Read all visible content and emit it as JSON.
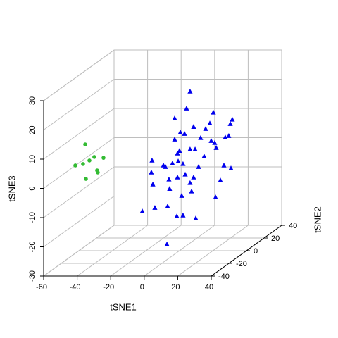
{
  "chart_data": {
    "type": "scatter3d",
    "xlabel": "tSNE1",
    "ylabel": "tSNE2",
    "zlabel": "tSNE3",
    "xlim": [
      -60,
      40
    ],
    "ylim": [
      -40,
      40
    ],
    "zlim": [
      -30,
      30
    ],
    "xticks": [
      -60,
      -40,
      -20,
      0,
      20,
      40
    ],
    "yticks": [
      -40,
      -20,
      0,
      20,
      40
    ],
    "zticks": [
      -30,
      -20,
      -10,
      0,
      10,
      20,
      30
    ],
    "grid": true,
    "series": [
      {
        "color": "#33bb33",
        "marker": "circle",
        "x": [
          -45.7,
          -40.3,
          -34.8,
          -43.2,
          -47.0,
          -51.6,
          -38.6,
          -38.2,
          -45.3
        ],
        "y": [
          -20,
          -20,
          -20,
          -20,
          -20,
          -20,
          -20,
          -20,
          -20
        ],
        "z": [
          10.7,
          6.4,
          6.1,
          5.2,
          4.0,
          3.5,
          1.8,
          1.1,
          -1.1
        ]
      },
      {
        "color": "#0000ee",
        "marker": "triangle",
        "x": [
          1.1,
          -1.0,
          15.0,
          -8.1,
          12.9,
          26.3,
          25.1,
          3.2,
          10.4,
          -4.7,
          22.1,
          -8.1,
          13.7,
          15.8,
          1.1,
          4.1,
          -5.2,
          16.7,
          -6.4,
          9.5,
          24.2,
          -21.6,
          -14.8,
          -9.4,
          -6.0,
          6.2,
          -3.1,
          21.3,
          25.5,
          -22.0,
          -13.6,
          -1.8,
          3.2,
          -6.4,
          -11.5,
          1.1,
          19.2,
          -21.1,
          -11.1,
          -3.9,
          2.0,
          16.3,
          -27.4,
          -19.9,
          -12.3,
          4.5,
          -6.8,
          -3.1,
          -12.7,
          -2.2,
          7.4
        ],
        "y": [
          10,
          10,
          10,
          10,
          10,
          10,
          10,
          10,
          10,
          10,
          10,
          10,
          10,
          10,
          10,
          10,
          10,
          10,
          10,
          10,
          10,
          10,
          10,
          10,
          10,
          10,
          10,
          10,
          10,
          10,
          10,
          10,
          10,
          10,
          10,
          10,
          10,
          10,
          10,
          10,
          10,
          10,
          10,
          10,
          10,
          10,
          10,
          10,
          10,
          10,
          10
        ],
        "z": [
          22.3,
          16.5,
          15.1,
          13.1,
          11.4,
          12.7,
          11.2,
          10.2,
          9.5,
          8.3,
          6.6,
          5.9,
          5.4,
          4.7,
          2.5,
          2.5,
          2.0,
          3.0,
          1.1,
          0.1,
          7.1,
          -1.3,
          -3.0,
          -2.3,
          -1.6,
          -3.5,
          -2.5,
          -3.0,
          -4.0,
          -5.4,
          -3.5,
          -6.1,
          -7.1,
          -7.1,
          -7.8,
          -9.0,
          -8.1,
          -9.5,
          -11.0,
          -13.4,
          -11.9,
          -13.9,
          -18.7,
          -17.5,
          -17.0,
          -21.1,
          -20.4,
          -20.1,
          -30.0,
          7.8,
          6.4
        ]
      }
    ]
  }
}
